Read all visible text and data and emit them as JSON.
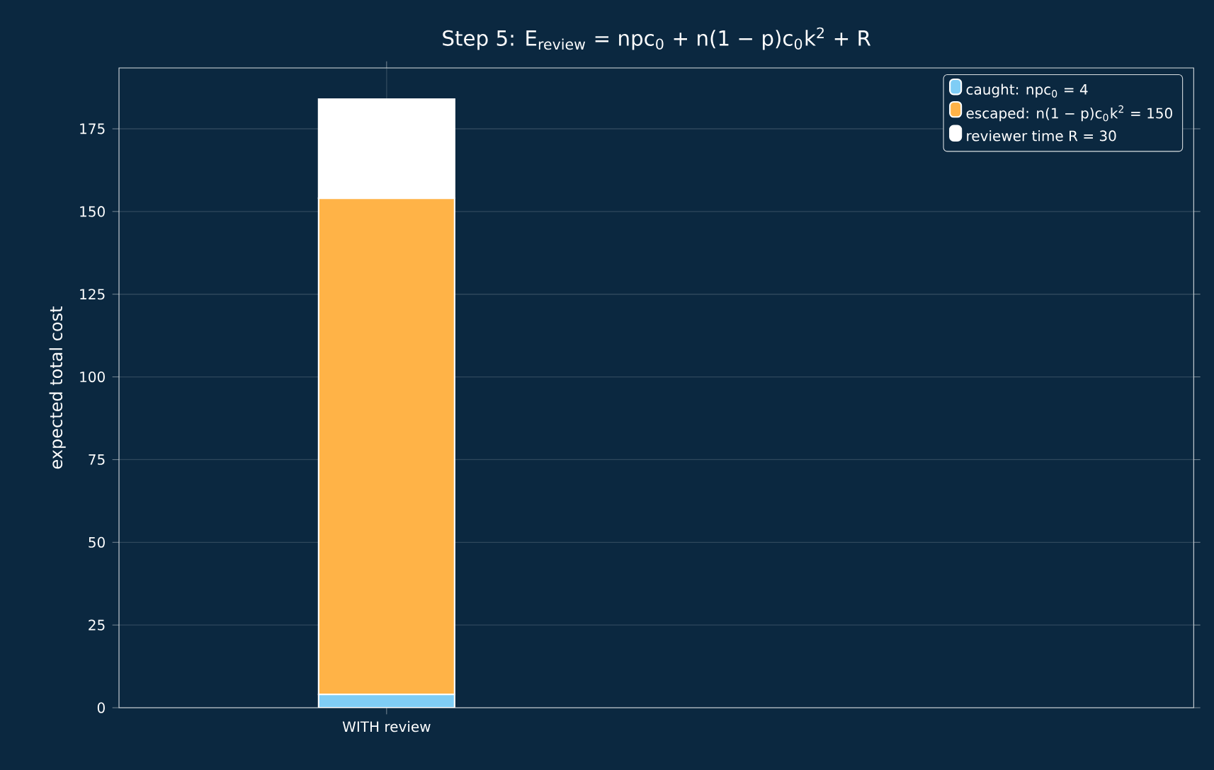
{
  "chart_data": {
    "type": "bar",
    "stacked": true,
    "title": "Step 5: E$_{review}$ = npc$_{0}$ + n(1 − p)c$_{0}$k$^{2}$ + R",
    "ylabel": "expected total cost",
    "categories": [
      "WITH review"
    ],
    "series": [
      {
        "name": "caught: npc$_{0}$ = 4",
        "color": "#7fcdf5",
        "values": [
          4
        ]
      },
      {
        "name": "escaped: n(1 − p)c$_{0}$k$^{2}$ = 150",
        "color": "#ffb347",
        "values": [
          150
        ]
      },
      {
        "name": "reviewer time R = 30",
        "color": "#ffffff",
        "values": [
          30
        ]
      }
    ],
    "ylim": [
      0,
      193.4
    ],
    "yticks": [
      0,
      25,
      50,
      75,
      100,
      125,
      150,
      175
    ],
    "grid": true,
    "legend": "top right"
  }
}
